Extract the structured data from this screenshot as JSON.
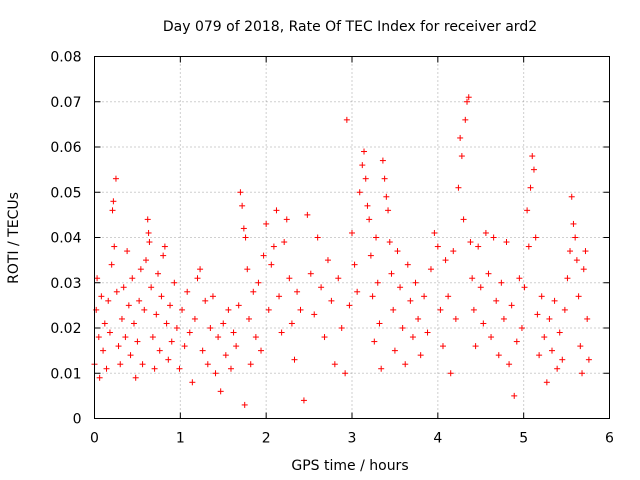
{
  "chart_data": {
    "type": "scatter",
    "title": "Day 079 of 2018, Rate Of TEC Index for receiver ard2",
    "xlabel": "GPS time / hours",
    "ylabel": "ROTI / TECUs",
    "xlim": [
      0,
      6
    ],
    "ylim": [
      0,
      0.08
    ],
    "grid": true,
    "marker": "plus",
    "color": "#ff0000",
    "x_ticks": [
      "0",
      "1",
      "2",
      "3",
      "4",
      "5",
      "6"
    ],
    "y_ticks": [
      "0",
      "0.01",
      "0.02",
      "0.03",
      "0.04",
      "0.05",
      "0.06",
      "0.07",
      "0.08"
    ],
    "points": [
      [
        0.0,
        0.012
      ],
      [
        0.02,
        0.024
      ],
      [
        0.03,
        0.031
      ],
      [
        0.05,
        0.018
      ],
      [
        0.06,
        0.009
      ],
      [
        0.08,
        0.027
      ],
      [
        0.1,
        0.015
      ],
      [
        0.12,
        0.021
      ],
      [
        0.14,
        0.011
      ],
      [
        0.16,
        0.026
      ],
      [
        0.18,
        0.019
      ],
      [
        0.2,
        0.034
      ],
      [
        0.21,
        0.046
      ],
      [
        0.22,
        0.048
      ],
      [
        0.23,
        0.038
      ],
      [
        0.25,
        0.053
      ],
      [
        0.26,
        0.028
      ],
      [
        0.28,
        0.016
      ],
      [
        0.3,
        0.012
      ],
      [
        0.32,
        0.022
      ],
      [
        0.34,
        0.029
      ],
      [
        0.36,
        0.018
      ],
      [
        0.38,
        0.037
      ],
      [
        0.4,
        0.025
      ],
      [
        0.42,
        0.014
      ],
      [
        0.44,
        0.031
      ],
      [
        0.46,
        0.021
      ],
      [
        0.48,
        0.009
      ],
      [
        0.5,
        0.017
      ],
      [
        0.52,
        0.026
      ],
      [
        0.54,
        0.033
      ],
      [
        0.56,
        0.012
      ],
      [
        0.58,
        0.024
      ],
      [
        0.6,
        0.035
      ],
      [
        0.62,
        0.044
      ],
      [
        0.63,
        0.041
      ],
      [
        0.64,
        0.039
      ],
      [
        0.66,
        0.029
      ],
      [
        0.68,
        0.018
      ],
      [
        0.7,
        0.011
      ],
      [
        0.72,
        0.023
      ],
      [
        0.74,
        0.032
      ],
      [
        0.76,
        0.015
      ],
      [
        0.78,
        0.027
      ],
      [
        0.8,
        0.036
      ],
      [
        0.82,
        0.038
      ],
      [
        0.84,
        0.021
      ],
      [
        0.86,
        0.013
      ],
      [
        0.88,
        0.025
      ],
      [
        0.9,
        0.017
      ],
      [
        0.93,
        0.03
      ],
      [
        0.96,
        0.02
      ],
      [
        0.99,
        0.011
      ],
      [
        1.02,
        0.024
      ],
      [
        1.05,
        0.016
      ],
      [
        1.08,
        0.028
      ],
      [
        1.11,
        0.019
      ],
      [
        1.14,
        0.008
      ],
      [
        1.17,
        0.022
      ],
      [
        1.2,
        0.031
      ],
      [
        1.23,
        0.033
      ],
      [
        1.26,
        0.015
      ],
      [
        1.29,
        0.026
      ],
      [
        1.32,
        0.012
      ],
      [
        1.35,
        0.02
      ],
      [
        1.38,
        0.027
      ],
      [
        1.41,
        0.01
      ],
      [
        1.44,
        0.018
      ],
      [
        1.47,
        0.006
      ],
      [
        1.5,
        0.021
      ],
      [
        1.53,
        0.014
      ],
      [
        1.56,
        0.024
      ],
      [
        1.59,
        0.011
      ],
      [
        1.62,
        0.019
      ],
      [
        1.65,
        0.016
      ],
      [
        1.68,
        0.025
      ],
      [
        1.7,
        0.05
      ],
      [
        1.72,
        0.047
      ],
      [
        1.74,
        0.042
      ],
      [
        1.76,
        0.04
      ],
      [
        1.78,
        0.033
      ],
      [
        1.8,
        0.022
      ],
      [
        1.82,
        0.012
      ],
      [
        1.75,
        0.003
      ],
      [
        1.85,
        0.028
      ],
      [
        1.88,
        0.018
      ],
      [
        1.91,
        0.03
      ],
      [
        1.94,
        0.015
      ],
      [
        1.97,
        0.036
      ],
      [
        2.0,
        0.043
      ],
      [
        2.03,
        0.024
      ],
      [
        2.06,
        0.034
      ],
      [
        2.09,
        0.038
      ],
      [
        2.12,
        0.046
      ],
      [
        2.15,
        0.027
      ],
      [
        2.18,
        0.019
      ],
      [
        2.21,
        0.039
      ],
      [
        2.24,
        0.044
      ],
      [
        2.27,
        0.031
      ],
      [
        2.3,
        0.021
      ],
      [
        2.33,
        0.013
      ],
      [
        2.36,
        0.028
      ],
      [
        2.4,
        0.024
      ],
      [
        2.44,
        0.004
      ],
      [
        2.48,
        0.045
      ],
      [
        2.52,
        0.032
      ],
      [
        2.56,
        0.023
      ],
      [
        2.6,
        0.04
      ],
      [
        2.64,
        0.029
      ],
      [
        2.68,
        0.018
      ],
      [
        2.72,
        0.035
      ],
      [
        2.76,
        0.026
      ],
      [
        2.8,
        0.012
      ],
      [
        2.84,
        0.031
      ],
      [
        2.88,
        0.02
      ],
      [
        2.92,
        0.01
      ],
      [
        2.94,
        0.066
      ],
      [
        2.97,
        0.025
      ],
      [
        3.0,
        0.041
      ],
      [
        3.03,
        0.034
      ],
      [
        3.06,
        0.028
      ],
      [
        3.09,
        0.05
      ],
      [
        3.12,
        0.056
      ],
      [
        3.14,
        0.059
      ],
      [
        3.16,
        0.053
      ],
      [
        3.18,
        0.047
      ],
      [
        3.2,
        0.044
      ],
      [
        3.22,
        0.036
      ],
      [
        3.24,
        0.027
      ],
      [
        3.26,
        0.017
      ],
      [
        3.28,
        0.04
      ],
      [
        3.3,
        0.03
      ],
      [
        3.32,
        0.021
      ],
      [
        3.34,
        0.011
      ],
      [
        3.36,
        0.057
      ],
      [
        3.38,
        0.053
      ],
      [
        3.4,
        0.049
      ],
      [
        3.42,
        0.046
      ],
      [
        3.44,
        0.039
      ],
      [
        3.46,
        0.032
      ],
      [
        3.48,
        0.024
      ],
      [
        3.5,
        0.015
      ],
      [
        3.53,
        0.037
      ],
      [
        3.56,
        0.029
      ],
      [
        3.59,
        0.02
      ],
      [
        3.62,
        0.012
      ],
      [
        3.65,
        0.034
      ],
      [
        3.68,
        0.026
      ],
      [
        3.71,
        0.018
      ],
      [
        3.74,
        0.03
      ],
      [
        3.77,
        0.022
      ],
      [
        3.8,
        0.014
      ],
      [
        3.84,
        0.027
      ],
      [
        3.88,
        0.019
      ],
      [
        3.92,
        0.033
      ],
      [
        3.96,
        0.041
      ],
      [
        4.0,
        0.038
      ],
      [
        4.03,
        0.024
      ],
      [
        4.06,
        0.016
      ],
      [
        4.09,
        0.035
      ],
      [
        4.12,
        0.027
      ],
      [
        4.15,
        0.01
      ],
      [
        4.18,
        0.037
      ],
      [
        4.21,
        0.022
      ],
      [
        4.24,
        0.051
      ],
      [
        4.26,
        0.062
      ],
      [
        4.28,
        0.058
      ],
      [
        4.3,
        0.044
      ],
      [
        4.32,
        0.066
      ],
      [
        4.34,
        0.07
      ],
      [
        4.36,
        0.071
      ],
      [
        4.38,
        0.039
      ],
      [
        4.4,
        0.031
      ],
      [
        4.42,
        0.024
      ],
      [
        4.44,
        0.016
      ],
      [
        4.47,
        0.038
      ],
      [
        4.5,
        0.029
      ],
      [
        4.53,
        0.021
      ],
      [
        4.56,
        0.041
      ],
      [
        4.59,
        0.032
      ],
      [
        4.62,
        0.018
      ],
      [
        4.65,
        0.04
      ],
      [
        4.68,
        0.026
      ],
      [
        4.71,
        0.014
      ],
      [
        4.74,
        0.03
      ],
      [
        4.77,
        0.022
      ],
      [
        4.8,
        0.039
      ],
      [
        4.83,
        0.012
      ],
      [
        4.86,
        0.025
      ],
      [
        4.89,
        0.005
      ],
      [
        4.92,
        0.017
      ],
      [
        4.95,
        0.031
      ],
      [
        4.98,
        0.02
      ],
      [
        5.01,
        0.029
      ],
      [
        5.04,
        0.046
      ],
      [
        5.06,
        0.038
      ],
      [
        5.08,
        0.051
      ],
      [
        5.1,
        0.058
      ],
      [
        5.12,
        0.055
      ],
      [
        5.14,
        0.04
      ],
      [
        5.16,
        0.023
      ],
      [
        5.18,
        0.014
      ],
      [
        5.21,
        0.027
      ],
      [
        5.24,
        0.018
      ],
      [
        5.27,
        0.008
      ],
      [
        5.3,
        0.022
      ],
      [
        5.33,
        0.015
      ],
      [
        5.36,
        0.026
      ],
      [
        5.39,
        0.011
      ],
      [
        5.42,
        0.019
      ],
      [
        5.45,
        0.013
      ],
      [
        5.48,
        0.024
      ],
      [
        5.51,
        0.031
      ],
      [
        5.54,
        0.037
      ],
      [
        5.56,
        0.049
      ],
      [
        5.58,
        0.043
      ],
      [
        5.6,
        0.04
      ],
      [
        5.62,
        0.035
      ],
      [
        5.64,
        0.027
      ],
      [
        5.66,
        0.016
      ],
      [
        5.68,
        0.01
      ],
      [
        5.7,
        0.033
      ],
      [
        5.72,
        0.037
      ],
      [
        5.74,
        0.022
      ],
      [
        5.76,
        0.013
      ]
    ]
  }
}
